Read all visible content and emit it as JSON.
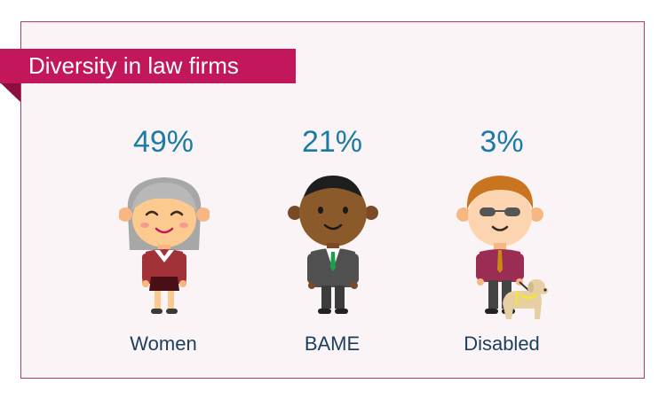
{
  "title": "Diversity in law firms",
  "stats": [
    {
      "percent": "49%",
      "label": "Women",
      "value": 49,
      "icon": "woman-icon"
    },
    {
      "percent": "21%",
      "label": "BAME",
      "value": 21,
      "icon": "bame-man-icon"
    },
    {
      "percent": "3%",
      "label": "Disabled",
      "value": 3,
      "icon": "disabled-man-with-guide-dog-icon"
    }
  ],
  "colors": {
    "banner": "#c2185b",
    "percent_text": "#1a7ca4",
    "label_text": "#1b3f5e",
    "panel_bg": "#fbf4f7",
    "panel_border": "#b0396a"
  }
}
